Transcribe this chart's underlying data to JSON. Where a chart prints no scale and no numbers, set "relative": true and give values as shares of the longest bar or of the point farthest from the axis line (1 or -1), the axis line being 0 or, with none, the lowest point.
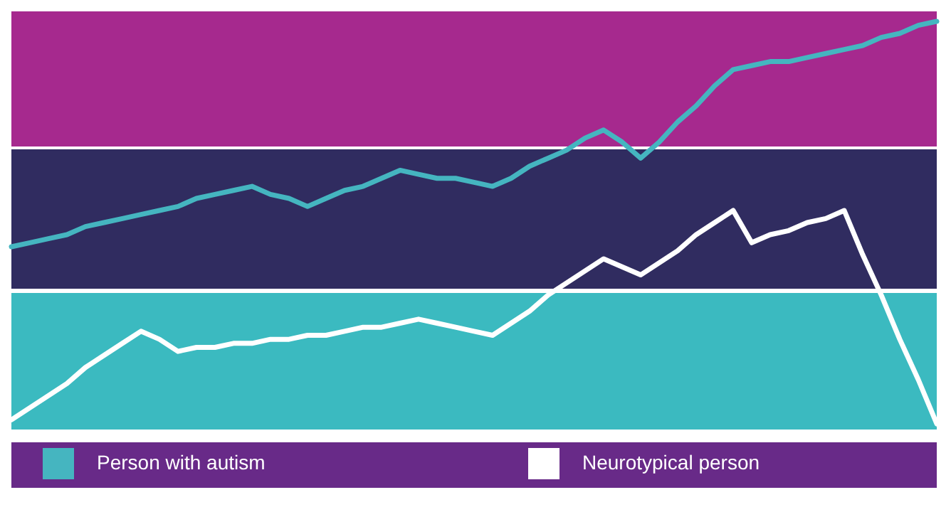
{
  "chart_data": {
    "type": "line",
    "relative": true,
    "tick_labels": false,
    "legend": "bottom",
    "line_style": "solid",
    "marker": "none",
    "categories": [
      null,
      null,
      null,
      null,
      null,
      null,
      null,
      null,
      null,
      null,
      null,
      null,
      null,
      null,
      null,
      null,
      null,
      null,
      null,
      null,
      null,
      null,
      null,
      null,
      null,
      null,
      null,
      null,
      null,
      null,
      null,
      null,
      null,
      null,
      null,
      null,
      null,
      null,
      null,
      null,
      null,
      null,
      null,
      null,
      null,
      null,
      null,
      null,
      null,
      null,
      null
    ],
    "series": [
      {
        "name": "Person with autism",
        "color": "#45b5c0",
        "values": [
          0.44,
          0.45,
          0.46,
          0.47,
          0.49,
          0.5,
          0.51,
          0.52,
          0.53,
          0.54,
          0.56,
          0.57,
          0.58,
          0.59,
          0.57,
          0.56,
          0.54,
          0.56,
          0.58,
          0.59,
          0.61,
          0.63,
          0.62,
          0.61,
          0.61,
          0.6,
          0.59,
          0.61,
          0.64,
          0.66,
          0.68,
          0.71,
          0.73,
          0.7,
          0.66,
          0.7,
          0.75,
          0.79,
          0.84,
          0.88,
          0.89,
          0.9,
          0.9,
          0.91,
          0.92,
          0.93,
          0.94,
          0.96,
          0.97,
          0.99,
          1
        ]
      },
      {
        "name": "Neurotypical person",
        "color": "#ffffff",
        "values": [
          0.01,
          0.04,
          0.07,
          0.1,
          0.14,
          0.17,
          0.2,
          0.23,
          0.21,
          0.18,
          0.19,
          0.19,
          0.2,
          0.2,
          0.21,
          0.21,
          0.22,
          0.22,
          0.23,
          0.24,
          0.24,
          0.25,
          0.26,
          0.25,
          0.24,
          0.23,
          0.22,
          0.25,
          0.28,
          0.32,
          0.35,
          0.38,
          0.41,
          0.39,
          0.37,
          0.4,
          0.43,
          0.47,
          0.5,
          0.53,
          0.45,
          0.47,
          0.48,
          0.5,
          0.51,
          0.53,
          0.42,
          0.32,
          0.21,
          0.11,
          0
        ]
      }
    ]
  }
}
